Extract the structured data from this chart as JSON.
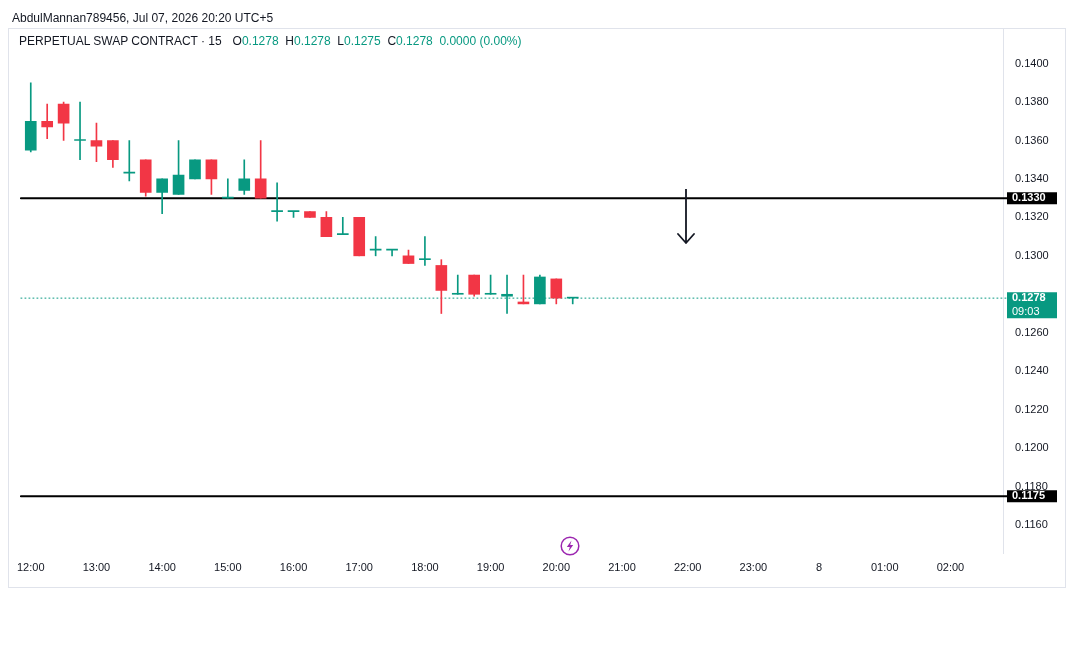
{
  "chart_data": {
    "type": "candlestick",
    "title": "PERPETUAL SWAP CONTRACT · 15",
    "subtitle": "O0.1278  H0.1278  L0.1275  C0.1278  0.0000 (0.00%)",
    "annotations": [
      "AbdulMannan789456, Jul 07, 2026 20:20 UTC+5"
    ],
    "x": [
      "2026-07-07T12:00",
      "2026-07-07T12:15",
      "2026-07-07T12:30",
      "2026-07-07T12:45",
      "2026-07-07T13:00",
      "2026-07-07T13:15",
      "2026-07-07T13:30",
      "2026-07-07T13:45",
      "2026-07-07T14:00",
      "2026-07-07T14:15",
      "2026-07-07T14:30",
      "2026-07-07T14:45",
      "2026-07-07T15:00",
      "2026-07-07T15:15",
      "2026-07-07T15:30",
      "2026-07-07T15:45",
      "2026-07-07T16:00",
      "2026-07-07T16:15",
      "2026-07-07T16:30",
      "2026-07-07T16:45",
      "2026-07-07T17:00",
      "2026-07-07T17:15",
      "2026-07-07T17:30",
      "2026-07-07T17:45",
      "2026-07-07T18:00",
      "2026-07-07T18:15",
      "2026-07-07T18:30",
      "2026-07-07T18:45",
      "2026-07-07T19:00",
      "2026-07-07T19:15",
      "2026-07-07T19:30",
      "2026-07-07T19:45",
      "2026-07-07T20:00",
      "2026-07-07T20:15"
    ],
    "ohlc": [
      [
        0.1355,
        0.139,
        0.1354,
        0.137
      ],
      [
        0.137,
        0.1379,
        0.1361,
        0.1367
      ],
      [
        0.1379,
        0.138,
        0.136,
        0.1369
      ],
      [
        0.136,
        0.138,
        0.135,
        0.136
      ],
      [
        0.136,
        0.1369,
        0.1349,
        0.1357
      ],
      [
        0.136,
        0.136,
        0.1346,
        0.135
      ],
      [
        0.1343,
        0.136,
        0.1339,
        0.1343
      ],
      [
        0.135,
        0.135,
        0.1331,
        0.1333
      ],
      [
        0.1333,
        0.134,
        0.1322,
        0.134
      ],
      [
        0.1332,
        0.136,
        0.1332,
        0.1342
      ],
      [
        0.134,
        0.135,
        0.134,
        0.135
      ],
      [
        0.135,
        0.135,
        0.1332,
        0.134
      ],
      [
        0.133,
        0.134,
        0.133,
        0.133
      ],
      [
        0.1334,
        0.135,
        0.1332,
        0.134
      ],
      [
        0.134,
        0.136,
        0.133,
        0.133
      ],
      [
        0.1323,
        0.1338,
        0.1318,
        0.1323
      ],
      [
        0.1323,
        0.1323,
        0.132,
        0.1323
      ],
      [
        0.1323,
        0.1323,
        0.132,
        0.132
      ],
      [
        0.132,
        0.1323,
        0.131,
        0.131
      ],
      [
        0.1311,
        0.132,
        0.1311,
        0.1311
      ],
      [
        0.132,
        0.132,
        0.13,
        0.13
      ],
      [
        0.1303,
        0.131,
        0.13,
        0.1303
      ],
      [
        0.1303,
        0.1303,
        0.13,
        0.1303
      ],
      [
        0.13,
        0.1303,
        0.1296,
        0.1296
      ],
      [
        0.1298,
        0.131,
        0.1295,
        0.1298
      ],
      [
        0.1295,
        0.1298,
        0.127,
        0.1282
      ],
      [
        0.128,
        0.129,
        0.128,
        0.128
      ],
      [
        0.129,
        0.129,
        0.1279,
        0.128
      ],
      [
        0.128,
        0.129,
        0.128,
        0.128
      ],
      [
        0.1279,
        0.129,
        0.127,
        0.128
      ],
      [
        0.1276,
        0.129,
        0.1275,
        0.1275
      ],
      [
        0.1275,
        0.129,
        0.1275,
        0.1289
      ],
      [
        0.1288,
        0.1288,
        0.1275,
        0.1278
      ],
      [
        0.1278,
        0.1278,
        0.1275,
        0.1278
      ]
    ],
    "colors": [
      "#089981",
      "#f23645",
      "#f23645",
      "#089981",
      "#f23645",
      "#f23645",
      "#089981",
      "#f23645",
      "#089981",
      "#089981",
      "#089981",
      "#f23645",
      "#089981",
      "#089981",
      "#f23645",
      "#089981",
      "#089981",
      "#f23645",
      "#f23645",
      "#089981",
      "#f23645",
      "#089981",
      "#089981",
      "#f23645",
      "#089981",
      "#f23645",
      "#089981",
      "#f23645",
      "#089981",
      "#089981",
      "#f23645",
      "#089981",
      "#f23645",
      "#089981"
    ],
    "xlim": [
      "2026-07-07T11:51",
      "2026-07-08T02:48"
    ],
    "xticks": [
      {
        "value": "2026-07-07T12:00",
        "label": "12:00"
      },
      {
        "value": "2026-07-07T13:00",
        "label": "13:00"
      },
      {
        "value": "2026-07-07T14:00",
        "label": "14:00"
      },
      {
        "value": "2026-07-07T15:00",
        "label": "15:00"
      },
      {
        "value": "2026-07-07T16:00",
        "label": "16:00"
      },
      {
        "value": "2026-07-07T17:00",
        "label": "17:00"
      },
      {
        "value": "2026-07-07T18:00",
        "label": "18:00"
      },
      {
        "value": "2026-07-07T19:00",
        "label": "19:00"
      },
      {
        "value": "2026-07-07T20:00",
        "label": "20:00"
      },
      {
        "value": "2026-07-07T21:00",
        "label": "21:00"
      },
      {
        "value": "2026-07-07T22:00",
        "label": "22:00"
      },
      {
        "value": "2026-07-07T23:00",
        "label": "23:00"
      },
      {
        "value": "2026-07-08",
        "label": "8"
      },
      {
        "value": "2026-07-08T01:00",
        "label": "01:00"
      },
      {
        "value": "2026-07-08T02:00",
        "label": "02:00"
      }
    ],
    "ylim": [
      0.1145,
      0.1418
    ],
    "yticks": [
      {
        "value": 0.116,
        "label": "0.1160"
      },
      {
        "value": 0.118,
        "label": "0.1180"
      },
      {
        "value": 0.12,
        "label": "0.1200"
      },
      {
        "value": 0.122,
        "label": "0.1220"
      },
      {
        "value": 0.124,
        "label": "0.1240"
      },
      {
        "value": 0.126,
        "label": "0.1260"
      },
      {
        "value": 0.13,
        "label": "0.1300"
      },
      {
        "value": 0.132,
        "label": "0.1320"
      },
      {
        "value": 0.134,
        "label": "0.1340"
      },
      {
        "value": 0.136,
        "label": "0.1360"
      },
      {
        "value": 0.138,
        "label": "0.1380"
      },
      {
        "value": 0.14,
        "label": "0.1400"
      }
    ],
    "ref_lines": [
      {
        "axis": "y",
        "value": 0.133,
        "label": "0.1330",
        "color": "#000000"
      },
      {
        "axis": "y",
        "value": 0.1278,
        "label": "0.1278\n09:03",
        "color": "#089981",
        "line_style": "dotted"
      },
      {
        "axis": "y",
        "value": 0.1175,
        "label": "0.1175",
        "color": "#000000"
      }
    ]
  }
}
